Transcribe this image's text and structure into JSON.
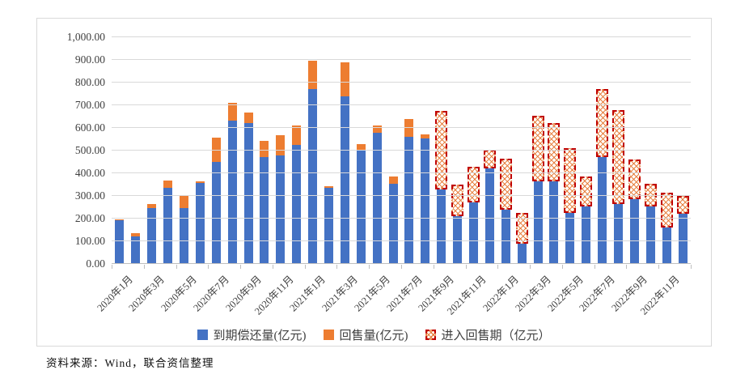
{
  "source_note": "资料来源：Wind，联合资信整理",
  "legend": [
    {
      "label": "到期偿还量(亿元)",
      "swatch": "blue-square"
    },
    {
      "label": "回售量(亿元)",
      "swatch": "orange-square"
    },
    {
      "label": "进入回售期（亿元）",
      "swatch": "red-hatched-square"
    }
  ],
  "colors": {
    "maturity_blue": "#4472C4",
    "putback_orange": "#ED7D31",
    "put_period_red": "#C00000",
    "gridline": "#D9D9D9",
    "axis_text": "#3F3F3F"
  },
  "y_axis": {
    "tick_labels_top_to_bottom": [
      "1,000.00",
      "900.00",
      "800.00",
      "700.00",
      "600.00",
      "500.00",
      "400.00",
      "300.00",
      "200.00",
      "100.00",
      "0.00"
    ]
  },
  "chart_data": {
    "type": "bar",
    "stacked": true,
    "grid": true,
    "legend_position": "bottom",
    "ylim": [
      0,
      1000
    ],
    "y_tick_step": 100,
    "categories": [
      "2020年1月",
      "2020年2月",
      "2020年3月",
      "2020年4月",
      "2020年5月",
      "2020年6月",
      "2020年7月",
      "2020年8月",
      "2020年9月",
      "2020年10月",
      "2020年11月",
      "2020年12月",
      "2021年1月",
      "2021年2月",
      "2021年3月",
      "2021年4月",
      "2021年5月",
      "2021年6月",
      "2021年7月",
      "2021年8月",
      "2021年9月",
      "2021年10月",
      "2021年11月",
      "2021年12月",
      "2022年1月",
      "2022年2月",
      "2022年3月",
      "2022年4月",
      "2022年5月",
      "2022年6月",
      "2022年7月",
      "2022年8月",
      "2022年9月",
      "2022年10月",
      "2022年11月",
      "2022年12月"
    ],
    "x_tick_labels_shown": [
      "2020年1月",
      "2020年3月",
      "2020年5月",
      "2020年7月",
      "2020年9月",
      "2020年11月",
      "2021年1月",
      "2021年3月",
      "2021年5月",
      "2021年7月",
      "2021年9月",
      "2021年11月",
      "2022年1月",
      "2022年3月",
      "2022年5月",
      "2022年7月",
      "2022年9月",
      "2022年11月"
    ],
    "series": [
      {
        "name": "到期偿还量(亿元)",
        "color": "#4472C4",
        "style": "solid",
        "values": [
          192,
          120,
          245,
          335,
          245,
          358,
          450,
          633,
          622,
          470,
          480,
          525,
          770,
          335,
          740,
          500,
          580,
          355,
          560,
          555,
          330,
          210,
          270,
          420,
          240,
          90,
          365,
          365,
          225,
          255,
          470,
          265,
          285,
          255,
          160,
          220
        ]
      },
      {
        "name": "回售量(亿元)",
        "color": "#ED7D31",
        "style": "solid",
        "values": [
          5,
          15,
          20,
          33,
          60,
          7,
          108,
          78,
          45,
          72,
          88,
          85,
          125,
          8,
          150,
          30,
          30,
          30,
          80,
          15,
          0,
          0,
          0,
          0,
          0,
          0,
          0,
          0,
          0,
          0,
          0,
          0,
          0,
          0,
          0,
          0
        ]
      },
      {
        "name": "进入回售期（亿元）",
        "color": "#C00000",
        "style": "dashed-outline-hatched",
        "values": [
          0,
          0,
          0,
          0,
          0,
          0,
          0,
          0,
          0,
          0,
          0,
          0,
          0,
          0,
          0,
          0,
          0,
          0,
          0,
          0,
          345,
          140,
          160,
          85,
          225,
          135,
          290,
          255,
          285,
          130,
          300,
          415,
          175,
          100,
          155,
          80
        ]
      }
    ]
  }
}
